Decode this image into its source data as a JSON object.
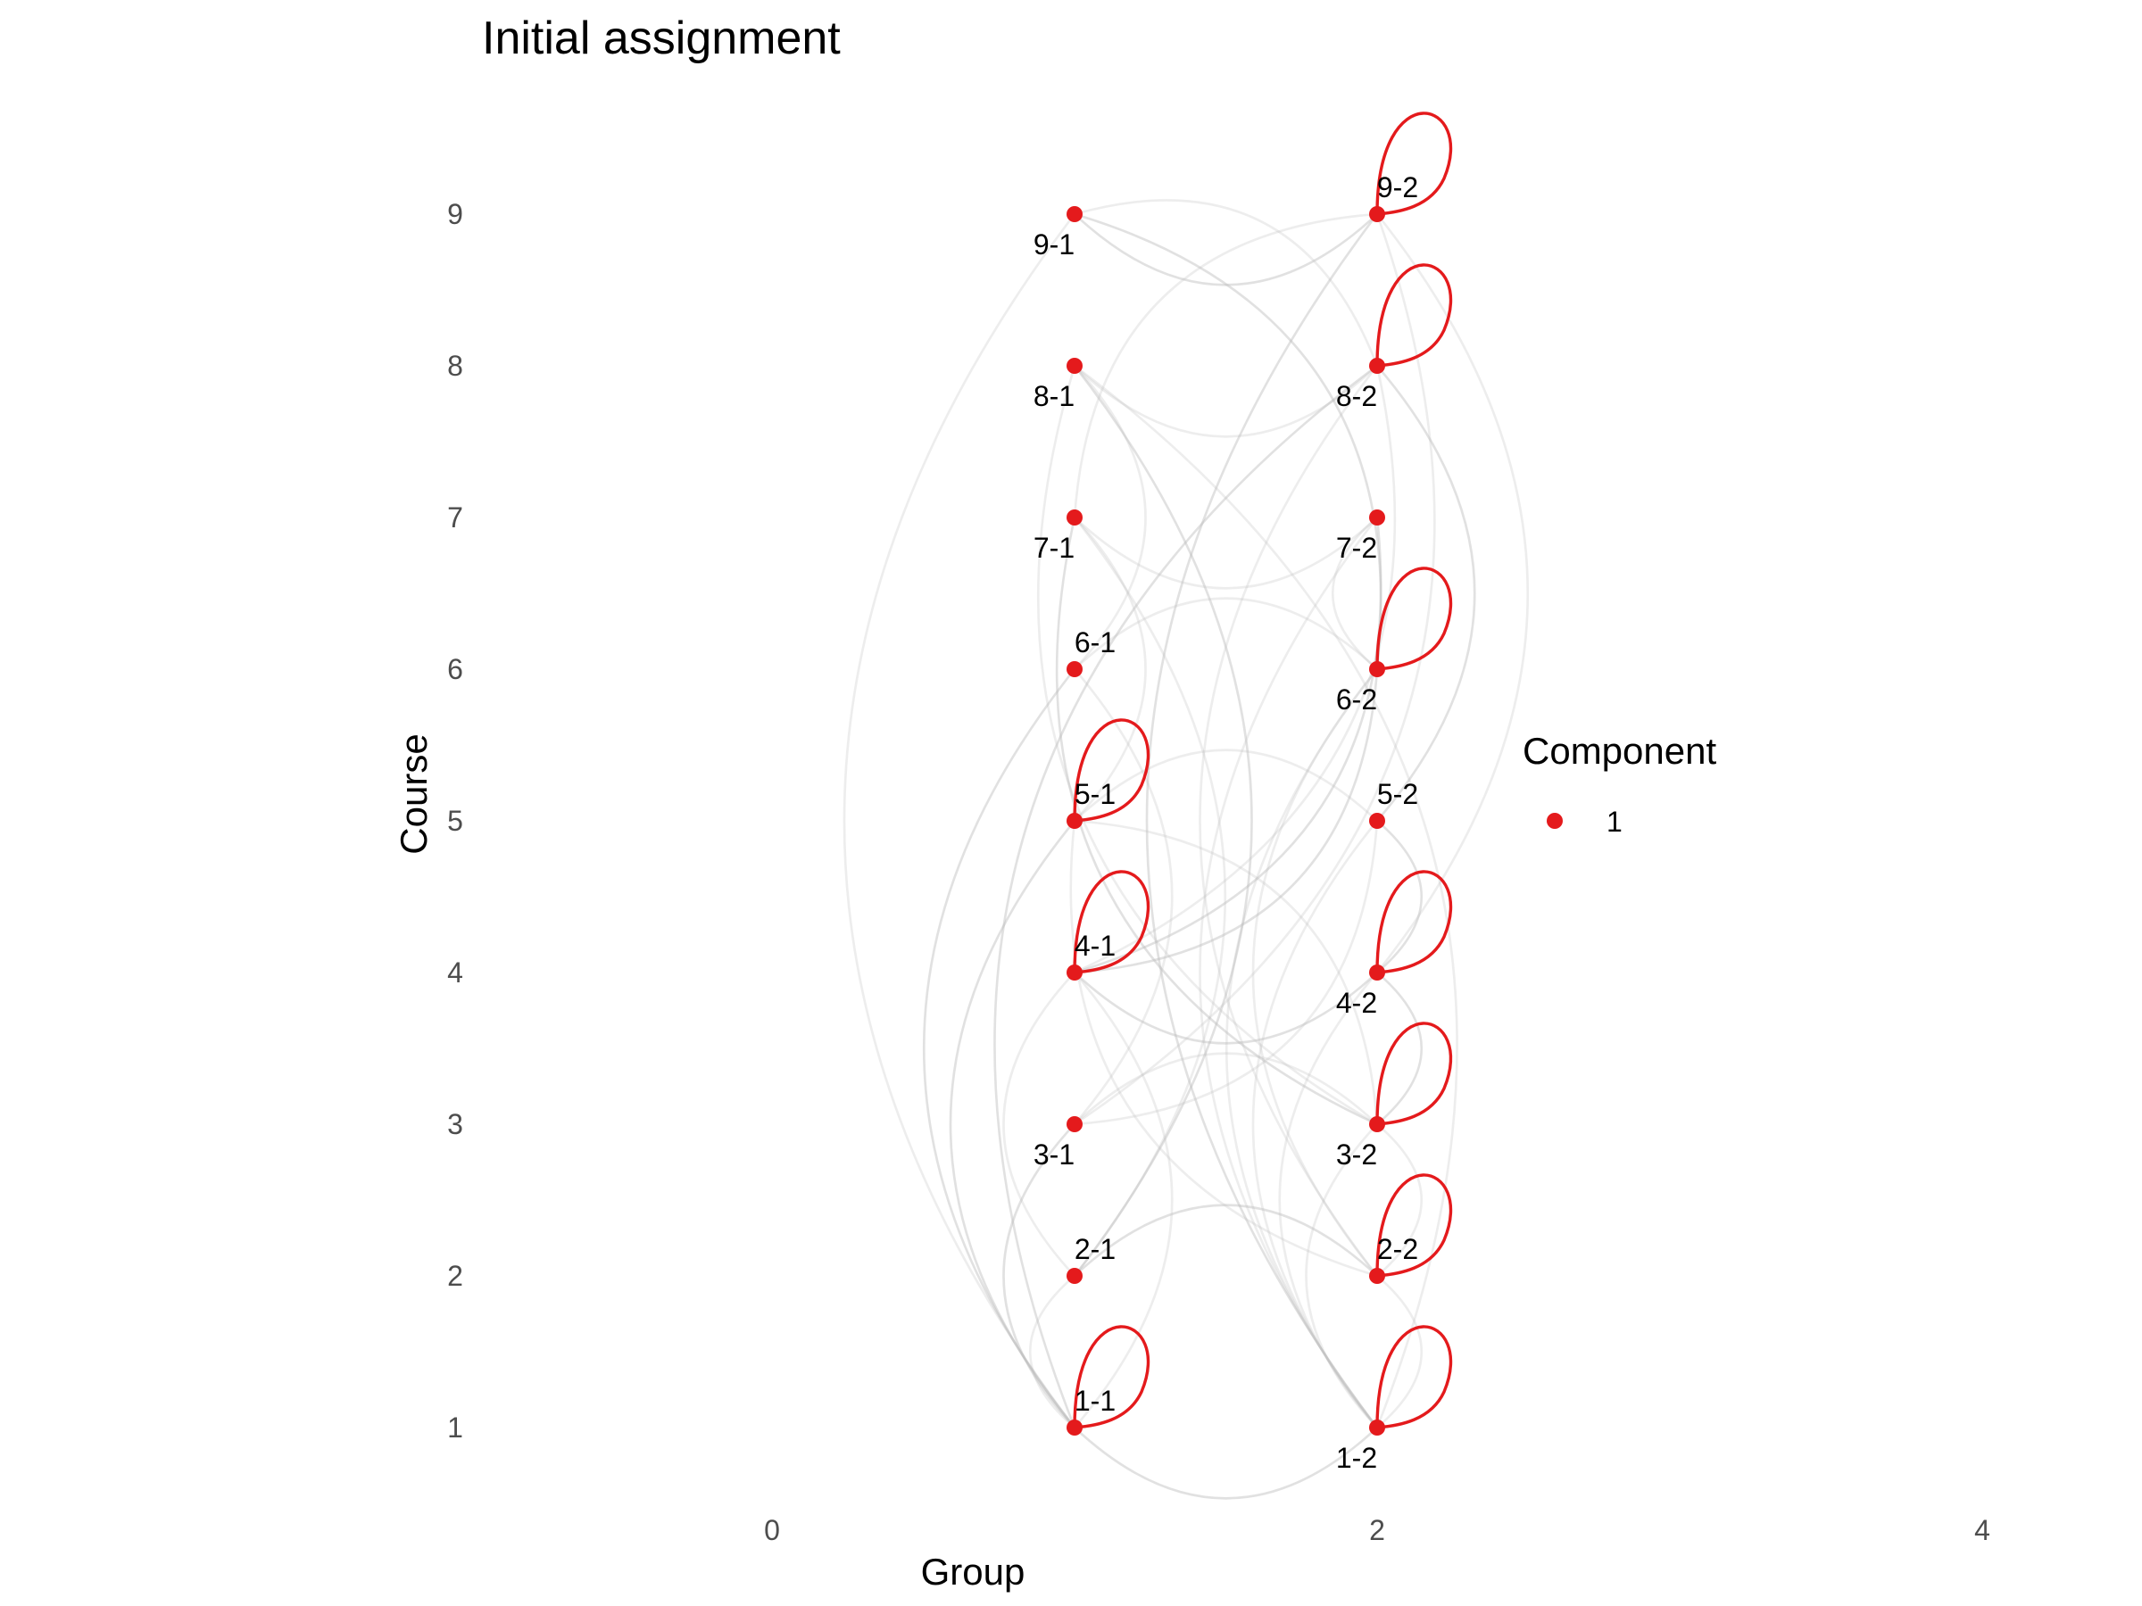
{
  "chart_data": {
    "type": "network",
    "title": "Initial assignment",
    "xlabel": "Group",
    "ylabel": "Course",
    "xlim": [
      -1.3,
      4.2
    ],
    "ylim": [
      0.5,
      9.4
    ],
    "x_ticks": [
      0,
      2,
      4
    ],
    "y_ticks": [
      1,
      2,
      3,
      4,
      5,
      6,
      7,
      8,
      9
    ],
    "grid": false,
    "colors": {
      "node": "#e41a1c",
      "edge": "#bdbdbd",
      "loop": "#e41a1c"
    },
    "nodes": [
      {
        "id": "1-1",
        "x": 1,
        "y": 1,
        "label_pos": "above"
      },
      {
        "id": "1-2",
        "x": 2,
        "y": 1,
        "label_pos": "below"
      },
      {
        "id": "2-1",
        "x": 1,
        "y": 2,
        "label_pos": "above"
      },
      {
        "id": "2-2",
        "x": 2,
        "y": 2,
        "label_pos": "above"
      },
      {
        "id": "3-1",
        "x": 1,
        "y": 3,
        "label_pos": "below"
      },
      {
        "id": "3-2",
        "x": 2,
        "y": 3,
        "label_pos": "below"
      },
      {
        "id": "4-1",
        "x": 1,
        "y": 4,
        "label_pos": "above"
      },
      {
        "id": "4-2",
        "x": 2,
        "y": 4,
        "label_pos": "below"
      },
      {
        "id": "5-1",
        "x": 1,
        "y": 5,
        "label_pos": "above"
      },
      {
        "id": "5-2",
        "x": 2,
        "y": 5,
        "label_pos": "above"
      },
      {
        "id": "6-1",
        "x": 1,
        "y": 6,
        "label_pos": "above"
      },
      {
        "id": "6-2",
        "x": 2,
        "y": 6,
        "label_pos": "below"
      },
      {
        "id": "7-1",
        "x": 1,
        "y": 7,
        "label_pos": "below"
      },
      {
        "id": "7-2",
        "x": 2,
        "y": 7,
        "label_pos": "below"
      },
      {
        "id": "8-1",
        "x": 1,
        "y": 8,
        "label_pos": "below"
      },
      {
        "id": "8-2",
        "x": 2,
        "y": 8,
        "label_pos": "below"
      },
      {
        "id": "9-1",
        "x": 1,
        "y": 9,
        "label_pos": "below"
      },
      {
        "id": "9-2",
        "x": 2,
        "y": 9,
        "label_pos": "above"
      }
    ],
    "self_loops": [
      "1-1",
      "1-2",
      "2-2",
      "3-2",
      "4-1",
      "4-2",
      "5-1",
      "6-2",
      "8-2",
      "9-2"
    ],
    "edges": [
      [
        "9-1",
        "9-2"
      ],
      [
        "9-1",
        "8-2"
      ],
      [
        "9-1",
        "1-1"
      ],
      [
        "9-1",
        "6-2"
      ],
      [
        "9-2",
        "7-1"
      ],
      [
        "9-2",
        "4-2"
      ],
      [
        "9-2",
        "1-2"
      ],
      [
        "9-2",
        "3-1"
      ],
      [
        "8-1",
        "8-2"
      ],
      [
        "8-1",
        "2-1"
      ],
      [
        "8-1",
        "3-2"
      ],
      [
        "8-1",
        "6-1"
      ],
      [
        "8-2",
        "1-1"
      ],
      [
        "8-2",
        "4-1"
      ],
      [
        "8-2",
        "2-2"
      ],
      [
        "8-2",
        "5-2"
      ],
      [
        "7-1",
        "7-2"
      ],
      [
        "7-1",
        "2-1"
      ],
      [
        "7-1",
        "3-2"
      ],
      [
        "7-1",
        "5-1"
      ],
      [
        "7-2",
        "1-2"
      ],
      [
        "7-2",
        "4-1"
      ],
      [
        "7-2",
        "6-2"
      ],
      [
        "6-1",
        "6-2"
      ],
      [
        "6-1",
        "1-1"
      ],
      [
        "6-1",
        "3-1"
      ],
      [
        "6-2",
        "2-2"
      ],
      [
        "6-2",
        "4-1"
      ],
      [
        "6-2",
        "1-2"
      ],
      [
        "5-1",
        "5-2"
      ],
      [
        "5-1",
        "1-1"
      ],
      [
        "5-1",
        "3-2"
      ],
      [
        "5-1",
        "2-2"
      ],
      [
        "5-2",
        "4-2"
      ],
      [
        "5-2",
        "1-2"
      ],
      [
        "5-2",
        "3-1"
      ],
      [
        "4-1",
        "4-2"
      ],
      [
        "4-1",
        "1-1"
      ],
      [
        "4-1",
        "2-1"
      ],
      [
        "4-2",
        "3-2"
      ],
      [
        "4-2",
        "1-2"
      ],
      [
        "3-1",
        "3-2"
      ],
      [
        "3-1",
        "1-1"
      ],
      [
        "3-2",
        "2-2"
      ],
      [
        "3-2",
        "1-2"
      ],
      [
        "2-1",
        "2-2"
      ],
      [
        "2-1",
        "1-1"
      ],
      [
        "2-2",
        "1-2"
      ],
      [
        "1-1",
        "1-2"
      ],
      [
        "8-1",
        "1-2"
      ]
    ],
    "legend": {
      "title": "Component",
      "position": "right",
      "items": [
        {
          "label": "1",
          "color": "#e41a1c"
        }
      ]
    }
  }
}
